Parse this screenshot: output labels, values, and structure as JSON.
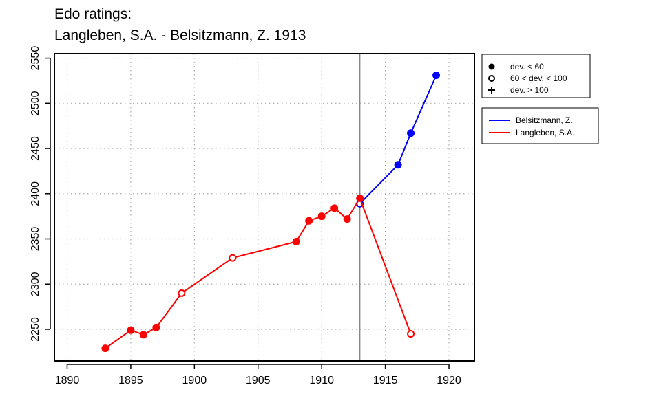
{
  "title": {
    "line1": "Edo ratings:",
    "line2": "Langleben, S.A. - Belsitzmann, Z. 1913"
  },
  "chart_data": {
    "type": "line",
    "title": "Edo ratings: Langleben, S.A. - Belsitzmann, Z. 1913",
    "xlabel": "",
    "ylabel": "",
    "xlim": [
      1889,
      1922
    ],
    "ylim": [
      2215,
      2555
    ],
    "x_ticks": [
      1890,
      1895,
      1900,
      1905,
      1910,
      1915,
      1920
    ],
    "y_ticks": [
      2250,
      2300,
      2350,
      2400,
      2450,
      2500,
      2550
    ],
    "grid": true,
    "reference_line_x": 1913,
    "series": [
      {
        "name": "Belsitzmann, Z.",
        "color": "#0000ff",
        "points": [
          {
            "x": 1913,
            "y": 2389,
            "marker": "open"
          },
          {
            "x": 1916,
            "y": 2432,
            "marker": "filled"
          },
          {
            "x": 1917,
            "y": 2467,
            "marker": "filled"
          },
          {
            "x": 1919,
            "y": 2531,
            "marker": "filled"
          }
        ]
      },
      {
        "name": "Langleben, S.A.",
        "color": "#ff0000",
        "points": [
          {
            "x": 1893,
            "y": 2229,
            "marker": "filled"
          },
          {
            "x": 1895,
            "y": 2249,
            "marker": "filled"
          },
          {
            "x": 1896,
            "y": 2244,
            "marker": "filled"
          },
          {
            "x": 1897,
            "y": 2252,
            "marker": "filled"
          },
          {
            "x": 1899,
            "y": 2290,
            "marker": "open"
          },
          {
            "x": 1903,
            "y": 2329,
            "marker": "open"
          },
          {
            "x": 1908,
            "y": 2347,
            "marker": "filled"
          },
          {
            "x": 1909,
            "y": 2370,
            "marker": "filled"
          },
          {
            "x": 1910,
            "y": 2375,
            "marker": "filled"
          },
          {
            "x": 1911,
            "y": 2384,
            "marker": "filled"
          },
          {
            "x": 1912,
            "y": 2372,
            "marker": "filled"
          },
          {
            "x": 1913,
            "y": 2395,
            "marker": "filled"
          },
          {
            "x": 1917,
            "y": 2245,
            "marker": "open"
          }
        ]
      }
    ],
    "marker_legend": [
      {
        "symbol": "filled",
        "label": "dev. < 60"
      },
      {
        "symbol": "open",
        "label": "60 < dev. < 100"
      },
      {
        "symbol": "plus",
        "label": "dev. > 100"
      }
    ],
    "legend_placement": "right"
  }
}
